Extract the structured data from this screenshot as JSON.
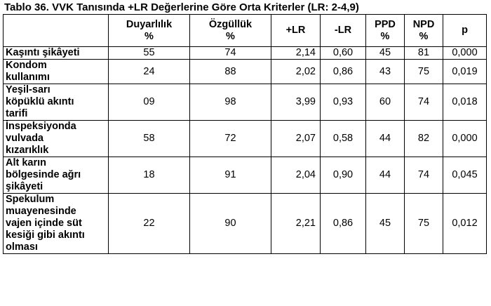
{
  "caption": "Tablo 36. VVK Tanısında +LR Değerlerine Göre Orta Kriterler (LR: 2-4,9)",
  "headers": [
    {
      "line1": "",
      "line2": ""
    },
    {
      "line1": "Duyarlılık",
      "line2": "%"
    },
    {
      "line1": "Özgüllük",
      "line2": "%"
    },
    {
      "line1": "+LR",
      "line2": ""
    },
    {
      "line1": "-LR",
      "line2": ""
    },
    {
      "line1": "PPD",
      "line2": "%"
    },
    {
      "line1": "NPD",
      "line2": "%"
    },
    {
      "line1": "p",
      "line2": ""
    }
  ],
  "rows": [
    {
      "label": [
        "Kaşıntı şikâyeti"
      ],
      "duyarlilik": "55",
      "ozgulluk": "74",
      "plr": "2,14",
      "nlr": "0,60",
      "ppd": "45",
      "npd": "81",
      "p": "0,000"
    },
    {
      "label": [
        "Kondom",
        "kullanımı"
      ],
      "duyarlilik": "24",
      "ozgulluk": "88",
      "plr": "2,02",
      "nlr": "0,86",
      "ppd": "43",
      "npd": "75",
      "p": "0,019"
    },
    {
      "label": [
        "Yeşil-sarı",
        "köpüklü akıntı",
        "tarifi"
      ],
      "duyarlilik": "09",
      "ozgulluk": "98",
      "plr": "3,99",
      "nlr": "0,93",
      "ppd": "60",
      "npd": "74",
      "p": "0,018"
    },
    {
      "label": [
        "İnspeksiyonda",
        "vulvada",
        "kızarıklık"
      ],
      "duyarlilik": "58",
      "ozgulluk": "72",
      "plr": "2,07",
      "nlr": "0,58",
      "ppd": "44",
      "npd": "82",
      "p": "0,000"
    },
    {
      "label": [
        "Alt karın",
        "bölgesinde ağrı",
        "şikâyeti"
      ],
      "duyarlilik": "18",
      "ozgulluk": "91",
      "plr": "2,04",
      "nlr": "0,90",
      "ppd": "44",
      "npd": "74",
      "p": "0,045"
    },
    {
      "label": [
        "Spekulum",
        "muayenesinde",
        "vajen içinde süt",
        "kesiği gibi akıntı",
        "olması"
      ],
      "duyarlilik": "22",
      "ozgulluk": "90",
      "plr": "2,21",
      "nlr": "0,86",
      "ppd": "45",
      "npd": "75",
      "p": "0,012"
    }
  ]
}
